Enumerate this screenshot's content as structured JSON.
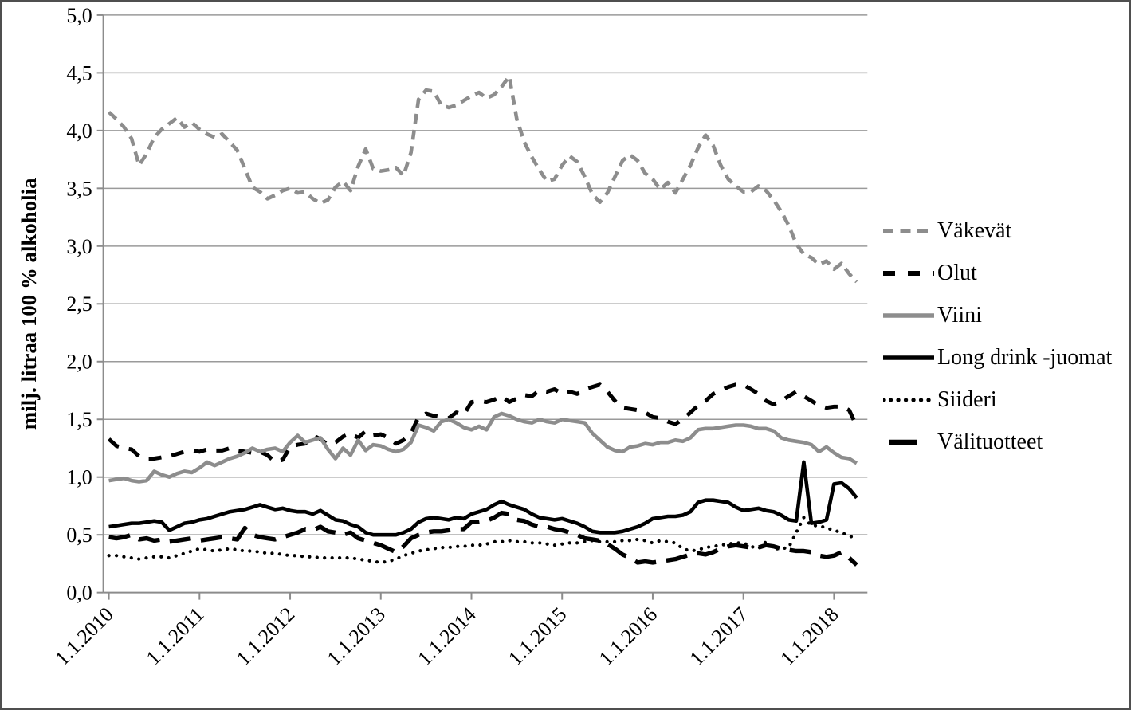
{
  "figure": {
    "background": "#ffffff",
    "border_color": "#4f4f4f",
    "grid_color": "#9a9a9a",
    "axis_color": "#8c8c8c",
    "text_color": "#000000"
  },
  "chart_data": {
    "type": "line",
    "title": "",
    "xlabel": "",
    "ylabel": "milj. litraa 100 % alkoholia",
    "ylim": [
      0,
      5.0
    ],
    "ytick_step": 0.5,
    "grid": "horizontal",
    "legend_position": "right",
    "x_unit": "month",
    "x_range": "1.1.2010 - 4.2018",
    "ytick_labels": [
      "0,0",
      "0,5",
      "1,0",
      "1,5",
      "2,0",
      "2,5",
      "3,0",
      "3,5",
      "4,0",
      "4,5",
      "5,0"
    ],
    "xtick_labels": [
      "1.1.2010",
      "1.1.2011",
      "1.1.2012",
      "1.1.2013",
      "1.1.2014",
      "1.1.2015",
      "1.1.2016",
      "1.1.2017",
      "1.1.2018"
    ],
    "series": [
      {
        "name": "Väkevät",
        "color": "#8d8d8d",
        "style": "dashed",
        "values": [
          4.16,
          4.1,
          4.03,
          3.93,
          3.7,
          3.8,
          3.94,
          4.01,
          4.06,
          4.11,
          4.03,
          4.07,
          4.01,
          3.97,
          3.94,
          3.97,
          3.9,
          3.83,
          3.67,
          3.51,
          3.47,
          3.41,
          3.44,
          3.48,
          3.5,
          3.46,
          3.47,
          3.41,
          3.37,
          3.4,
          3.51,
          3.56,
          3.48,
          3.69,
          3.84,
          3.67,
          3.65,
          3.66,
          3.68,
          3.61,
          3.81,
          4.27,
          4.35,
          4.34,
          4.22,
          4.2,
          4.22,
          4.26,
          4.3,
          4.33,
          4.28,
          4.31,
          4.38,
          4.47,
          4.1,
          3.9,
          3.77,
          3.66,
          3.56,
          3.58,
          3.7,
          3.78,
          3.73,
          3.6,
          3.45,
          3.38,
          3.46,
          3.6,
          3.74,
          3.79,
          3.74,
          3.63,
          3.58,
          3.49,
          3.55,
          3.46,
          3.58,
          3.7,
          3.85,
          3.96,
          3.87,
          3.7,
          3.58,
          3.52,
          3.47,
          3.47,
          3.52,
          3.48,
          3.4,
          3.3,
          3.18,
          3.02,
          2.93,
          2.9,
          2.84,
          2.87,
          2.8,
          2.85,
          2.76,
          2.69
        ]
      },
      {
        "name": "Olut",
        "color": "#000000",
        "style": "long-dashed",
        "values": [
          1.33,
          1.27,
          1.25,
          1.24,
          1.18,
          1.16,
          1.16,
          1.17,
          1.18,
          1.2,
          1.22,
          1.23,
          1.22,
          1.24,
          1.23,
          1.23,
          1.25,
          1.23,
          1.22,
          1.21,
          1.22,
          1.19,
          1.13,
          1.15,
          1.26,
          1.28,
          1.29,
          1.36,
          1.33,
          1.28,
          1.3,
          1.35,
          1.38,
          1.34,
          1.4,
          1.36,
          1.37,
          1.34,
          1.29,
          1.32,
          1.38,
          1.52,
          1.55,
          1.53,
          1.52,
          1.51,
          1.56,
          1.54,
          1.65,
          1.66,
          1.65,
          1.67,
          1.7,
          1.65,
          1.68,
          1.71,
          1.7,
          1.75,
          1.74,
          1.76,
          1.72,
          1.74,
          1.72,
          1.76,
          1.78,
          1.8,
          1.74,
          1.66,
          1.6,
          1.59,
          1.58,
          1.56,
          1.52,
          1.51,
          1.48,
          1.46,
          1.5,
          1.56,
          1.62,
          1.66,
          1.72,
          1.75,
          1.78,
          1.8,
          1.8,
          1.76,
          1.72,
          1.66,
          1.63,
          1.66,
          1.7,
          1.74,
          1.7,
          1.66,
          1.62,
          1.6,
          1.61,
          1.61,
          1.58,
          1.44
        ]
      },
      {
        "name": "Viini",
        "color": "#8d8d8d",
        "style": "solid",
        "values": [
          0.97,
          0.98,
          0.99,
          0.97,
          0.96,
          0.97,
          1.05,
          1.02,
          1.0,
          1.03,
          1.05,
          1.04,
          1.08,
          1.13,
          1.1,
          1.13,
          1.16,
          1.18,
          1.21,
          1.25,
          1.22,
          1.24,
          1.25,
          1.22,
          1.3,
          1.36,
          1.3,
          1.32,
          1.34,
          1.24,
          1.16,
          1.25,
          1.19,
          1.32,
          1.23,
          1.28,
          1.27,
          1.24,
          1.22,
          1.24,
          1.3,
          1.45,
          1.43,
          1.4,
          1.48,
          1.5,
          1.47,
          1.43,
          1.41,
          1.44,
          1.41,
          1.52,
          1.55,
          1.53,
          1.5,
          1.48,
          1.47,
          1.5,
          1.48,
          1.47,
          1.5,
          1.49,
          1.48,
          1.47,
          1.38,
          1.32,
          1.26,
          1.23,
          1.22,
          1.26,
          1.27,
          1.29,
          1.28,
          1.3,
          1.3,
          1.32,
          1.31,
          1.34,
          1.41,
          1.42,
          1.42,
          1.43,
          1.44,
          1.45,
          1.45,
          1.44,
          1.42,
          1.42,
          1.4,
          1.34,
          1.32,
          1.31,
          1.3,
          1.28,
          1.22,
          1.26,
          1.21,
          1.17,
          1.16,
          1.12
        ]
      },
      {
        "name": "Long drink -juomat",
        "color": "#000000",
        "style": "solid",
        "values": [
          0.57,
          0.58,
          0.59,
          0.6,
          0.6,
          0.61,
          0.62,
          0.61,
          0.54,
          0.57,
          0.6,
          0.61,
          0.63,
          0.64,
          0.66,
          0.68,
          0.7,
          0.71,
          0.72,
          0.74,
          0.76,
          0.74,
          0.72,
          0.73,
          0.71,
          0.7,
          0.7,
          0.68,
          0.71,
          0.67,
          0.63,
          0.62,
          0.59,
          0.57,
          0.52,
          0.5,
          0.5,
          0.5,
          0.5,
          0.52,
          0.55,
          0.61,
          0.64,
          0.65,
          0.64,
          0.63,
          0.65,
          0.64,
          0.68,
          0.7,
          0.72,
          0.76,
          0.79,
          0.76,
          0.74,
          0.72,
          0.68,
          0.65,
          0.64,
          0.63,
          0.64,
          0.62,
          0.6,
          0.57,
          0.53,
          0.52,
          0.52,
          0.52,
          0.53,
          0.55,
          0.57,
          0.6,
          0.64,
          0.65,
          0.66,
          0.66,
          0.67,
          0.7,
          0.78,
          0.8,
          0.8,
          0.79,
          0.78,
          0.74,
          0.71,
          0.72,
          0.73,
          0.71,
          0.7,
          0.67,
          0.63,
          0.62,
          1.13,
          0.6,
          0.61,
          0.63,
          0.94,
          0.95,
          0.9,
          0.82
        ]
      },
      {
        "name": "Siideri",
        "color": "#000000",
        "style": "dotted",
        "values": [
          0.32,
          0.32,
          0.31,
          0.3,
          0.29,
          0.3,
          0.31,
          0.31,
          0.3,
          0.32,
          0.34,
          0.36,
          0.38,
          0.37,
          0.36,
          0.37,
          0.38,
          0.37,
          0.36,
          0.36,
          0.35,
          0.34,
          0.34,
          0.33,
          0.32,
          0.32,
          0.31,
          0.31,
          0.3,
          0.3,
          0.3,
          0.3,
          0.3,
          0.29,
          0.28,
          0.27,
          0.26,
          0.27,
          0.29,
          0.32,
          0.34,
          0.36,
          0.37,
          0.38,
          0.39,
          0.39,
          0.4,
          0.4,
          0.41,
          0.41,
          0.42,
          0.44,
          0.44,
          0.45,
          0.44,
          0.44,
          0.43,
          0.43,
          0.42,
          0.41,
          0.42,
          0.43,
          0.43,
          0.44,
          0.45,
          0.44,
          0.44,
          0.44,
          0.45,
          0.45,
          0.46,
          0.45,
          0.43,
          0.45,
          0.44,
          0.43,
          0.38,
          0.36,
          0.37,
          0.39,
          0.4,
          0.41,
          0.42,
          0.43,
          0.43,
          0.4,
          0.38,
          0.44,
          0.38,
          0.38,
          0.39,
          0.52,
          0.65,
          0.58,
          0.58,
          0.56,
          0.54,
          0.52,
          0.49,
          0.47
        ]
      },
      {
        "name": "Välituotteet",
        "color": "#000000",
        "style": "extra-long-dashed",
        "values": [
          0.48,
          0.47,
          0.48,
          0.5,
          0.46,
          0.47,
          0.45,
          0.46,
          0.44,
          0.45,
          0.46,
          0.47,
          0.45,
          0.46,
          0.47,
          0.48,
          0.47,
          0.46,
          0.56,
          0.5,
          0.48,
          0.47,
          0.46,
          0.48,
          0.5,
          0.52,
          0.55,
          0.54,
          0.57,
          0.53,
          0.52,
          0.5,
          0.52,
          0.47,
          0.45,
          0.43,
          0.41,
          0.38,
          0.35,
          0.4,
          0.47,
          0.5,
          0.52,
          0.53,
          0.53,
          0.54,
          0.55,
          0.55,
          0.61,
          0.61,
          0.62,
          0.65,
          0.69,
          0.68,
          0.63,
          0.62,
          0.59,
          0.57,
          0.57,
          0.55,
          0.54,
          0.52,
          0.5,
          0.47,
          0.46,
          0.45,
          0.42,
          0.38,
          0.33,
          0.3,
          0.26,
          0.27,
          0.26,
          0.27,
          0.28,
          0.29,
          0.31,
          0.33,
          0.34,
          0.33,
          0.35,
          0.38,
          0.4,
          0.41,
          0.4,
          0.39,
          0.39,
          0.41,
          0.4,
          0.38,
          0.37,
          0.36,
          0.36,
          0.35,
          0.32,
          0.31,
          0.32,
          0.35,
          0.3,
          0.24
        ]
      }
    ]
  }
}
